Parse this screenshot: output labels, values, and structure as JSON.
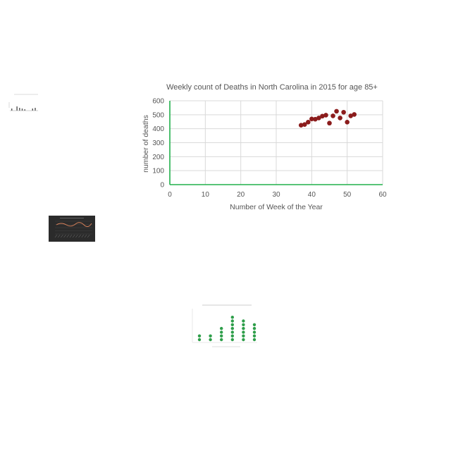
{
  "chart_data": {
    "type": "scatter",
    "title": "Weekly count of Deaths in North Carolina in 2015 for age 85+",
    "xlabel": "Number of Week of the Year",
    "ylabel": "number of deaths",
    "xlim": [
      0,
      60
    ],
    "ylim": [
      0,
      600
    ],
    "x_ticks": [
      0,
      10,
      20,
      30,
      40,
      50,
      60
    ],
    "y_ticks": [
      0,
      100,
      200,
      300,
      400,
      500,
      600
    ],
    "grid": true,
    "series": [
      {
        "color": "#8b1c1c",
        "points": [
          {
            "x": 37,
            "y": 425
          },
          {
            "x": 38,
            "y": 430
          },
          {
            "x": 39,
            "y": 447
          },
          {
            "x": 40,
            "y": 470
          },
          {
            "x": 41,
            "y": 468
          },
          {
            "x": 42,
            "y": 477
          },
          {
            "x": 43,
            "y": 490
          },
          {
            "x": 44,
            "y": 497
          },
          {
            "x": 45,
            "y": 440
          },
          {
            "x": 46,
            "y": 492
          },
          {
            "x": 47,
            "y": 525
          },
          {
            "x": 48,
            "y": 477
          },
          {
            "x": 49,
            "y": 518
          },
          {
            "x": 50,
            "y": 447
          },
          {
            "x": 51,
            "y": 492
          },
          {
            "x": 52,
            "y": 502
          }
        ]
      }
    ],
    "axis_color": "#22b14c",
    "grid_color": "#d9d9d9"
  },
  "thumbnails": {
    "bar_thumb": {
      "bars": [
        3,
        0,
        6,
        4,
        3,
        2,
        0,
        0,
        3,
        4
      ],
      "bar_color": "#555555"
    },
    "line_thumb": {
      "line_color": "#d9825b",
      "background": "#2b2b2b"
    },
    "dot_thumb": {
      "columns": [
        2,
        2,
        4,
        7,
        6,
        5
      ],
      "dot_color": "#2e9e4a"
    }
  }
}
